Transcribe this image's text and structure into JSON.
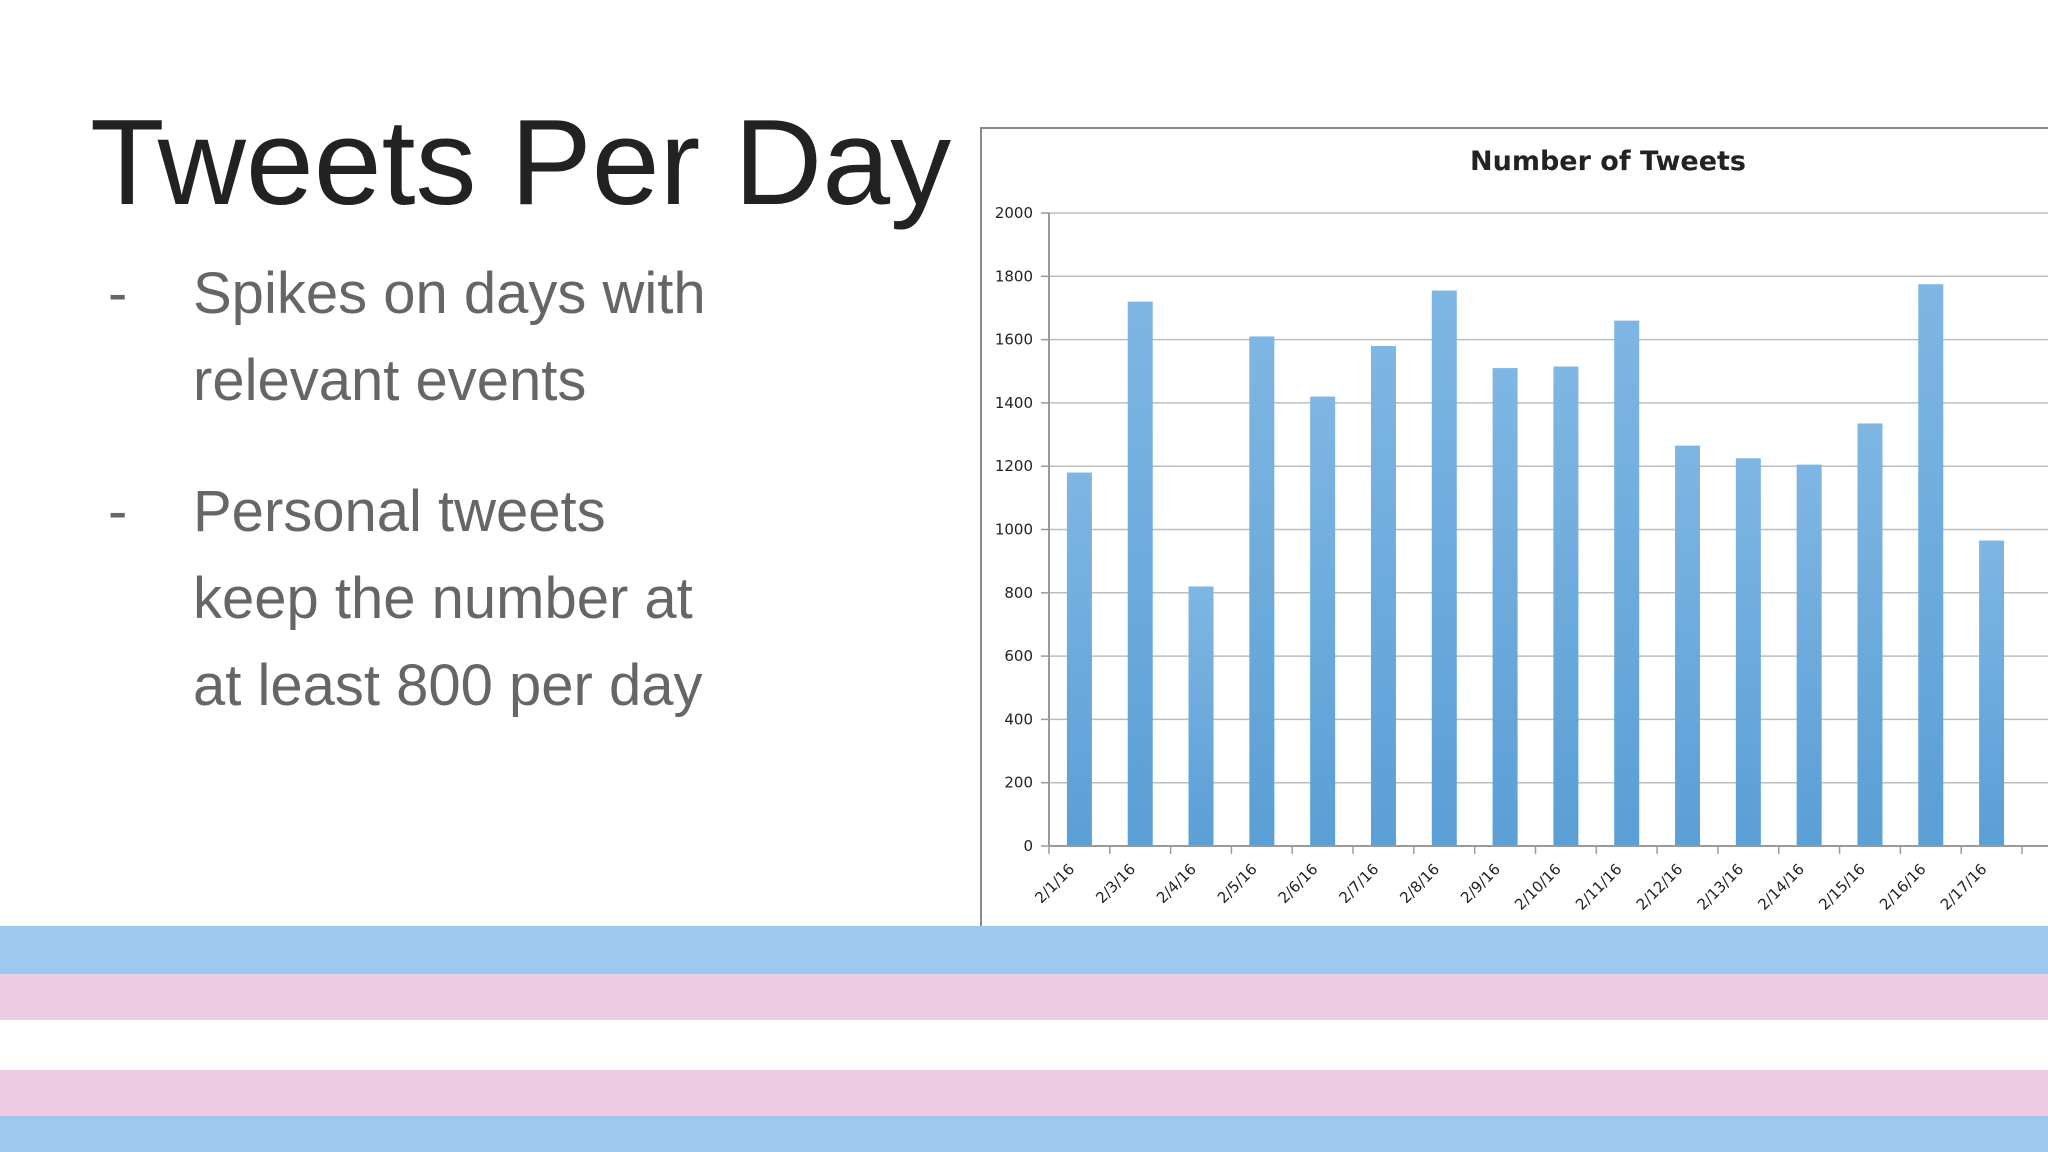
{
  "slide": {
    "title": "Tweets Per Day",
    "bullets": [
      {
        "dash": "-",
        "lines": [
          "Spikes on days with",
          "relevant events"
        ]
      },
      {
        "dash": "-",
        "lines": [
          "Personal tweets",
          "keep the number at",
          "at least 800 per day"
        ]
      }
    ]
  },
  "stripes": {
    "colors": [
      "#9ec9ee",
      "#eccbe3",
      "#ffffff",
      "#eccbe3",
      "#9ec9ee"
    ]
  },
  "chart_data": {
    "type": "bar",
    "title": "Number of Tweets",
    "xlabel": "",
    "ylabel": "",
    "categories": [
      "2/1/16",
      "2/3/16",
      "2/4/16",
      "2/5/16",
      "2/6/16",
      "2/7/16",
      "2/8/16",
      "2/9/16",
      "2/10/16",
      "2/11/16",
      "2/12/16",
      "2/13/16",
      "2/14/16",
      "2/15/16",
      "2/16/16",
      "2/17/16"
    ],
    "values": [
      1180,
      1720,
      820,
      1610,
      1420,
      1580,
      1755,
      1510,
      1515,
      1660,
      1265,
      1225,
      1205,
      1335,
      1775,
      965
    ],
    "ylim": [
      0,
      2000
    ],
    "yticks": [
      "0",
      "200",
      "400",
      "600",
      "800",
      "1000",
      "1200",
      "1400",
      "1600",
      "1800",
      "2000"
    ],
    "grid": true,
    "legend": "none",
    "colors": {
      "bar": "#5a9fd6",
      "bar_light": "#7fb6e3",
      "grid": "#bdbdbd",
      "axis": "#9a9a9a",
      "text": "#222222"
    }
  }
}
